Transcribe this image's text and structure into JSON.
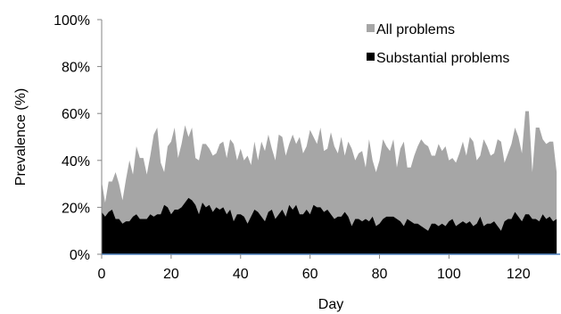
{
  "chart_data": {
    "type": "area",
    "title": "",
    "xlabel": "Day",
    "ylabel": "Prevalence (%)",
    "xlim": [
      0,
      132
    ],
    "ylim": [
      0,
      100
    ],
    "x_ticks": [
      "0",
      "20",
      "40",
      "60",
      "80",
      "100",
      "120"
    ],
    "y_ticks": [
      "0%",
      "20%",
      "40%",
      "60%",
      "80%",
      "100%"
    ],
    "grid": false,
    "legend_position": "top-right",
    "series": [
      {
        "name": "All problems",
        "color": "#a6a6a6",
        "values": [
          31,
          22,
          31,
          31,
          35,
          30,
          23,
          32,
          40,
          34,
          46,
          41,
          41,
          34,
          42,
          51,
          54,
          39,
          35,
          46,
          48,
          54,
          41,
          47,
          55,
          50,
          54,
          41,
          40,
          47,
          47,
          45,
          42,
          43,
          47,
          48,
          41,
          49,
          47,
          40,
          45,
          40,
          42,
          38,
          48,
          40,
          48,
          44,
          51,
          45,
          40,
          51,
          50,
          42,
          47,
          51,
          47,
          50,
          43,
          46,
          53,
          50,
          47,
          54,
          44,
          45,
          52,
          46,
          43,
          50,
          42,
          48,
          45,
          40,
          43,
          44,
          37,
          49,
          40,
          35,
          40,
          49,
          46,
          44,
          49,
          37,
          45,
          48,
          37,
          37,
          42,
          46,
          49,
          47,
          46,
          42,
          42,
          47,
          44,
          46,
          40,
          41,
          39,
          43,
          48,
          42,
          50,
          48,
          40,
          42,
          49,
          46,
          42,
          43,
          49,
          48,
          39,
          43,
          47,
          54,
          50,
          43,
          61,
          61,
          35,
          54,
          54,
          49,
          47,
          48,
          48,
          35
        ]
      },
      {
        "name": "Substantial problems",
        "color": "#000000",
        "values": [
          18,
          16,
          18,
          19,
          15,
          15,
          13,
          14,
          14,
          16,
          17,
          15,
          15,
          15,
          17,
          16,
          17,
          17,
          21,
          20,
          17,
          19,
          19,
          20,
          22,
          24,
          23,
          21,
          17,
          22,
          20,
          21,
          18,
          20,
          19,
          20,
          17,
          19,
          14,
          17,
          17,
          16,
          13,
          16,
          19,
          18,
          16,
          14,
          18,
          19,
          15,
          17,
          19,
          16,
          21,
          19,
          21,
          17,
          17,
          19,
          17,
          21,
          20,
          20,
          18,
          19,
          17,
          15,
          16,
          16,
          18,
          16,
          12,
          15,
          15,
          14,
          15,
          14,
          16,
          12,
          13,
          15,
          16,
          16,
          16,
          15,
          14,
          12,
          15,
          14,
          13,
          13,
          12,
          11,
          10,
          13,
          13,
          12,
          13,
          12,
          14,
          15,
          12,
          13,
          14,
          13,
          14,
          12,
          13,
          16,
          12,
          13,
          13,
          14,
          12,
          10,
          14,
          15,
          15,
          18,
          16,
          14,
          17,
          17,
          15,
          15,
          14,
          17,
          15,
          16,
          14,
          15
        ]
      }
    ]
  }
}
